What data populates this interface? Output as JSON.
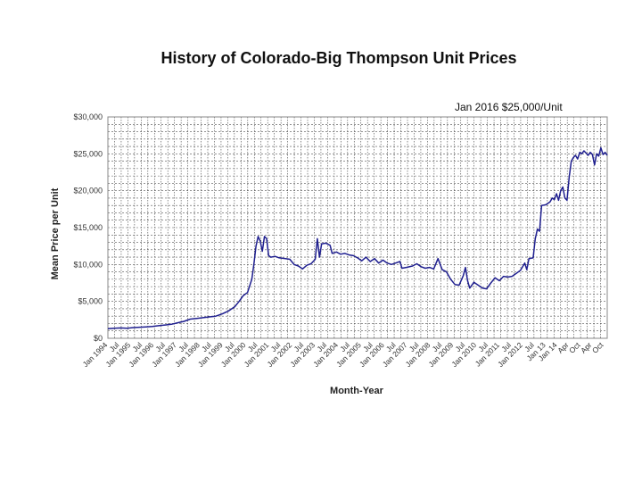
{
  "chart_data": {
    "type": "line",
    "title": "History of Colorado-Big Thompson Unit Prices",
    "annotation": "Jan 2016 $25,000/Unit",
    "xlabel": "Month-Year",
    "ylabel": "Mean Price per Unit",
    "ylim": [
      0,
      30000
    ],
    "y_ticks": [
      "$0",
      "$5,000",
      "$10,000",
      "$15,000",
      "$20,000",
      "$25,000",
      "$30,000"
    ],
    "grid": "vertical and horizontal dashed",
    "x_ticks": [
      "Jan 1994",
      "Jul",
      "Jan 1995",
      "Jul",
      "Jan 1996",
      "Jul",
      "Jan 1997",
      "Jul",
      "Jan 1998",
      "Jul",
      "Jan 1999",
      "Jul",
      "Jan 2000",
      "Jul",
      "Jan 2001",
      "Jul",
      "Jan 2002",
      "Jul",
      "Jan 2003",
      "Jul",
      "Jan 2004",
      "Jul",
      "Jan 2005",
      "Jul",
      "Jan 2006",
      "Jul",
      "Jan 2007",
      "Jul",
      "Jan 2008",
      "Jul",
      "Jan 2009",
      "Jul",
      "Jan 2010",
      "Jul",
      "Jan 2011",
      "Jul",
      "Jan 2012",
      "Jul",
      "Jan 13",
      "Jan 14",
      "Apr",
      "Oct",
      "Apr",
      "Oct"
    ],
    "series": [
      {
        "color": "#1f1f8f",
        "points": [
          [
            0,
            1300
          ],
          [
            3,
            1350
          ],
          [
            6,
            1400
          ],
          [
            9,
            1350
          ],
          [
            12,
            1450
          ],
          [
            15,
            1500
          ],
          [
            18,
            1550
          ],
          [
            21,
            1600
          ],
          [
            24,
            1700
          ],
          [
            27,
            1800
          ],
          [
            30,
            1900
          ],
          [
            33,
            2100
          ],
          [
            36,
            2300
          ],
          [
            39,
            2600
          ],
          [
            42,
            2700
          ],
          [
            45,
            2800
          ],
          [
            48,
            2900
          ],
          [
            51,
            3000
          ],
          [
            54,
            3300
          ],
          [
            57,
            3700
          ],
          [
            60,
            4300
          ],
          [
            62,
            5000
          ],
          [
            64,
            5800
          ],
          [
            66,
            6200
          ],
          [
            68,
            8000
          ],
          [
            69,
            10000
          ],
          [
            70,
            12500
          ],
          [
            71,
            13800
          ],
          [
            72,
            13200
          ],
          [
            73,
            11800
          ],
          [
            74,
            13800
          ],
          [
            75,
            13500
          ],
          [
            76,
            11200
          ],
          [
            77,
            11000
          ],
          [
            79,
            11100
          ],
          [
            81,
            10900
          ],
          [
            84,
            10800
          ],
          [
            86,
            10700
          ],
          [
            88,
            10000
          ],
          [
            90,
            9800
          ],
          [
            92,
            9400
          ],
          [
            94,
            9900
          ],
          [
            96,
            10100
          ],
          [
            98,
            10700
          ],
          [
            99,
            13500
          ],
          [
            100,
            11000
          ],
          [
            101,
            12800
          ],
          [
            103,
            12900
          ],
          [
            105,
            12600
          ],
          [
            106,
            11500
          ],
          [
            108,
            11700
          ],
          [
            110,
            11400
          ],
          [
            112,
            11500
          ],
          [
            114,
            11300
          ],
          [
            116,
            11200
          ],
          [
            118,
            10900
          ],
          [
            120,
            10500
          ],
          [
            122,
            11000
          ],
          [
            124,
            10400
          ],
          [
            126,
            10800
          ],
          [
            128,
            10200
          ],
          [
            130,
            10600
          ],
          [
            132,
            10200
          ],
          [
            134,
            10000
          ],
          [
            136,
            10200
          ],
          [
            138,
            10400
          ],
          [
            139,
            9500
          ],
          [
            141,
            9600
          ],
          [
            144,
            9800
          ],
          [
            146,
            10100
          ],
          [
            148,
            9700
          ],
          [
            150,
            9500
          ],
          [
            152,
            9600
          ],
          [
            154,
            9400
          ],
          [
            156,
            10800
          ],
          [
            158,
            9300
          ],
          [
            160,
            9000
          ],
          [
            162,
            8000
          ],
          [
            164,
            7300
          ],
          [
            166,
            7200
          ],
          [
            168,
            8500
          ],
          [
            169,
            9600
          ],
          [
            170,
            7800
          ],
          [
            171,
            6800
          ],
          [
            173,
            7600
          ],
          [
            175,
            7200
          ],
          [
            177,
            6800
          ],
          [
            179,
            6700
          ],
          [
            181,
            7500
          ],
          [
            183,
            8200
          ],
          [
            185,
            7800
          ],
          [
            187,
            8400
          ],
          [
            189,
            8300
          ],
          [
            191,
            8400
          ],
          [
            193,
            8800
          ],
          [
            195,
            9200
          ],
          [
            197,
            10200
          ],
          [
            198,
            9300
          ],
          [
            199,
            10800
          ],
          [
            201,
            10900
          ],
          [
            202,
            13500
          ],
          [
            203,
            14800
          ],
          [
            204,
            14500
          ],
          [
            205,
            18000
          ],
          [
            207,
            18100
          ],
          [
            209,
            18500
          ],
          [
            210,
            19000
          ],
          [
            211,
            18800
          ],
          [
            212,
            19600
          ],
          [
            213,
            18700
          ],
          [
            214,
            20000
          ],
          [
            215,
            20500
          ],
          [
            216,
            19000
          ],
          [
            217,
            18700
          ],
          [
            218,
            21800
          ],
          [
            219,
            24000
          ],
          [
            220,
            24500
          ],
          [
            221,
            24800
          ],
          [
            222,
            24300
          ],
          [
            223,
            25200
          ],
          [
            224,
            25000
          ],
          [
            225,
            25400
          ],
          [
            226,
            25100
          ],
          [
            227,
            24800
          ],
          [
            228,
            25200
          ],
          [
            229,
            24900
          ],
          [
            230,
            23500
          ],
          [
            231,
            25000
          ],
          [
            232,
            24700
          ],
          [
            233,
            25800
          ],
          [
            234,
            24900
          ],
          [
            235,
            25200
          ],
          [
            236,
            24800
          ]
        ]
      }
    ]
  }
}
